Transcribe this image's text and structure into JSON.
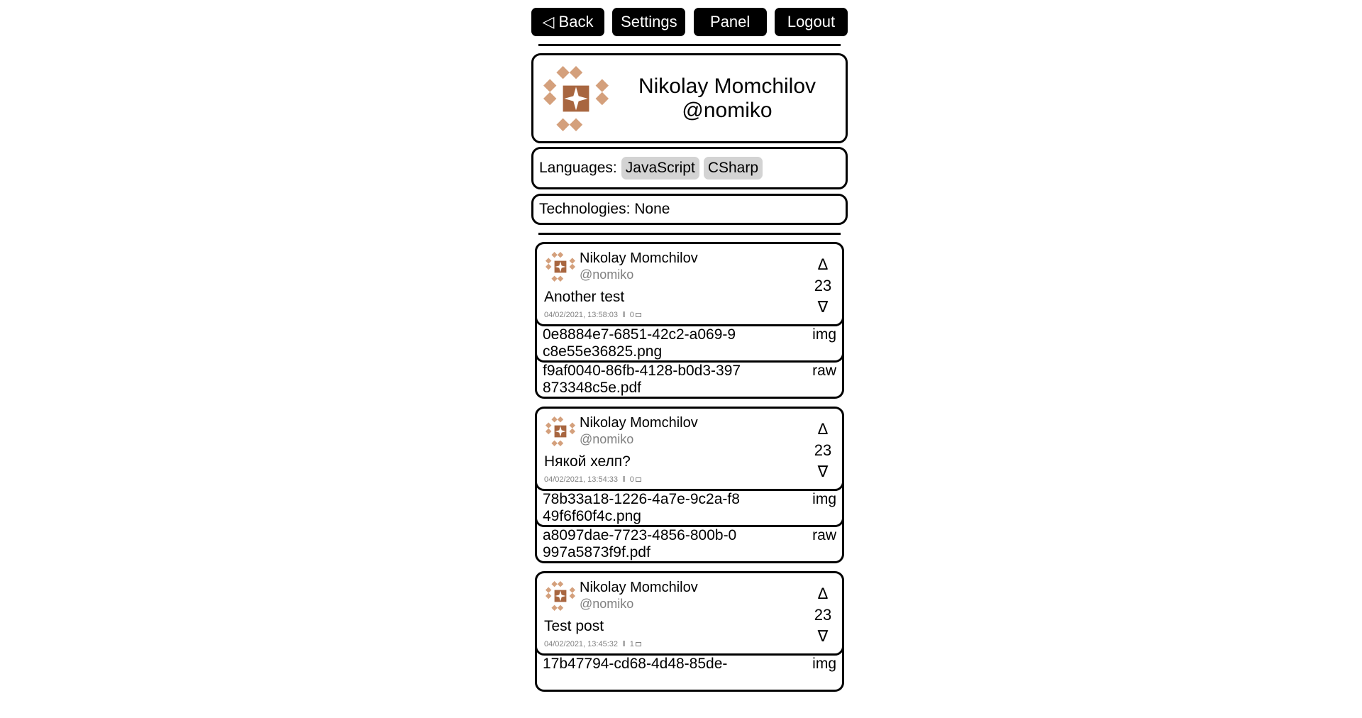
{
  "nav": {
    "back": "◁ Back",
    "settings": "Settings",
    "panel": "Panel",
    "logout": "Logout"
  },
  "profile": {
    "name": "Nikolay Momchilov",
    "handle": "@nomiko",
    "avatar_colors": {
      "light": "#d4a07c",
      "dark": "#a86640"
    }
  },
  "languages": {
    "label": "Languages:",
    "items": [
      "JavaScript",
      "CSharp"
    ]
  },
  "technologies": {
    "label": "Technologies:",
    "value": "None"
  },
  "posts": [
    {
      "author": "Nikolay Momchilov",
      "handle": "@nomiko",
      "text": "Another test",
      "date": "04/02/2021, 13:58:03",
      "separator": "‖",
      "comments": "0",
      "votes": "23",
      "up": "Δ",
      "down": "∇",
      "files": [
        {
          "name": "0e8884e7-6851-42c2-a069-9c8e55e36825.png",
          "type": "img"
        },
        {
          "name": "f9af0040-86fb-4128-b0d3-397873348c5e.pdf",
          "type": "raw"
        }
      ]
    },
    {
      "author": "Nikolay Momchilov",
      "handle": "@nomiko",
      "text": "Някой хелп?",
      "date": "04/02/2021, 13:54:33",
      "separator": "‖",
      "comments": "0",
      "votes": "23",
      "up": "Δ",
      "down": "∇",
      "files": [
        {
          "name": "78b33a18-1226-4a7e-9c2a-f849f6f60f4c.png",
          "type": "img"
        },
        {
          "name": "a8097dae-7723-4856-800b-0997a5873f9f.pdf",
          "type": "raw"
        }
      ]
    },
    {
      "author": "Nikolay Momchilov",
      "handle": "@nomiko",
      "text": "Test post",
      "date": "04/02/2021, 13:45:32",
      "separator": "‖",
      "comments": "1",
      "votes": "23",
      "up": "Δ",
      "down": "∇",
      "files": [
        {
          "name": "17b47794-cd68-4d48-85de-",
          "type": "img"
        }
      ]
    }
  ]
}
